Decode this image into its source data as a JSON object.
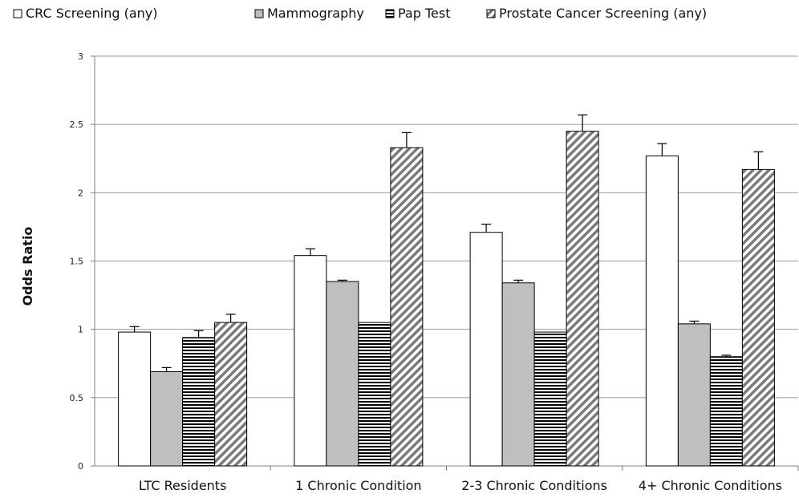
{
  "chart_data": {
    "type": "bar",
    "categories": [
      "LTC Residents",
      "1 Chronic Condition",
      "2-3 Chronic Conditions",
      "4+ Chronic Conditions"
    ],
    "series": [
      {
        "name": "CRC Screening (any)",
        "pattern": "white",
        "values": [
          0.98,
          1.54,
          1.71,
          2.27
        ],
        "errors": [
          0.04,
          0.05,
          0.06,
          0.09
        ]
      },
      {
        "name": "Mammography",
        "pattern": "gray",
        "values": [
          0.69,
          1.35,
          1.34,
          1.04
        ],
        "errors": [
          0.03,
          0.01,
          0.02,
          0.02
        ]
      },
      {
        "name": "Pap Test",
        "pattern": "horizontal-stripes",
        "values": [
          0.94,
          1.05,
          0.98,
          0.8
        ],
        "errors": [
          0.05,
          0.0,
          0.0,
          0.01
        ]
      },
      {
        "name": "Prostate Cancer Screening (any)",
        "pattern": "diagonal-stripes",
        "values": [
          1.05,
          2.33,
          2.45,
          2.17
        ],
        "errors": [
          0.06,
          0.11,
          0.12,
          0.13
        ]
      }
    ],
    "ylabel": "Odds Ratio",
    "xlabel": "",
    "ylim": [
      0,
      3
    ],
    "yticks": [
      "0",
      "0.5",
      "1",
      "1.5",
      "2",
      "2.5",
      "3"
    ],
    "grid": true,
    "legend": "top"
  },
  "colors": {
    "bar_outline": "#000000",
    "gray_fill": "#bfbfbf",
    "gridline": "#9a9a9a",
    "axis": "#808080"
  }
}
